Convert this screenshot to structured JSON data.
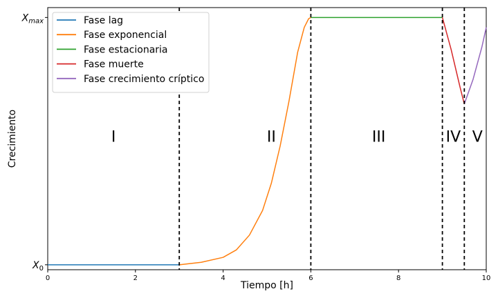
{
  "chart_data": {
    "type": "line",
    "xlabel": "Tiempo [h]",
    "ylabel": "Crecimiento",
    "xlim": [
      0,
      10
    ],
    "ylim": [
      -0.02,
      1.04
    ],
    "x_ticks": [
      0,
      2,
      4,
      6,
      8,
      10
    ],
    "y_ticks": [
      {
        "value": 0,
        "label": "X0",
        "base": "X",
        "sub": "0"
      },
      {
        "value": 1,
        "label": "Xmax",
        "base": "X",
        "sub": "max"
      }
    ],
    "grid": false,
    "legend_position": "top-left",
    "phase_boundaries": [
      3,
      6,
      9,
      9.5
    ],
    "phase_labels": [
      {
        "text": "I",
        "x": 1.5
      },
      {
        "text": "II",
        "x": 5.1
      },
      {
        "text": "III",
        "x": 7.55
      },
      {
        "text": "IV",
        "x": 9.25
      },
      {
        "text": "V",
        "x": 9.8
      }
    ],
    "phase_label_y": 0.52,
    "series": [
      {
        "name": "Fase lag",
        "color": "#1f77b4",
        "x": [
          0,
          3
        ],
        "y": [
          0,
          0
        ]
      },
      {
        "name": "Fase exponencial",
        "color": "#ff7f0e",
        "x": [
          3.0,
          3.5,
          4.0,
          4.3,
          4.6,
          4.9,
          5.1,
          5.3,
          5.5,
          5.7,
          5.85,
          5.95,
          6.0
        ],
        "y": [
          0.0,
          0.01,
          0.03,
          0.06,
          0.12,
          0.22,
          0.33,
          0.48,
          0.66,
          0.86,
          0.96,
          0.995,
          1.0
        ]
      },
      {
        "name": "Fase estacionaria",
        "color": "#2ca02c",
        "x": [
          6,
          9
        ],
        "y": [
          1,
          1
        ]
      },
      {
        "name": "Fase muerte",
        "color": "#d62728",
        "x": [
          9.0,
          9.2,
          9.4,
          9.5
        ],
        "y": [
          1.0,
          0.87,
          0.72,
          0.65
        ]
      },
      {
        "name": "Fase crecimiento críptico",
        "color": "#9467bd",
        "x": [
          9.5,
          9.7,
          9.9,
          10.0
        ],
        "y": [
          0.65,
          0.75,
          0.88,
          0.96
        ]
      }
    ]
  }
}
